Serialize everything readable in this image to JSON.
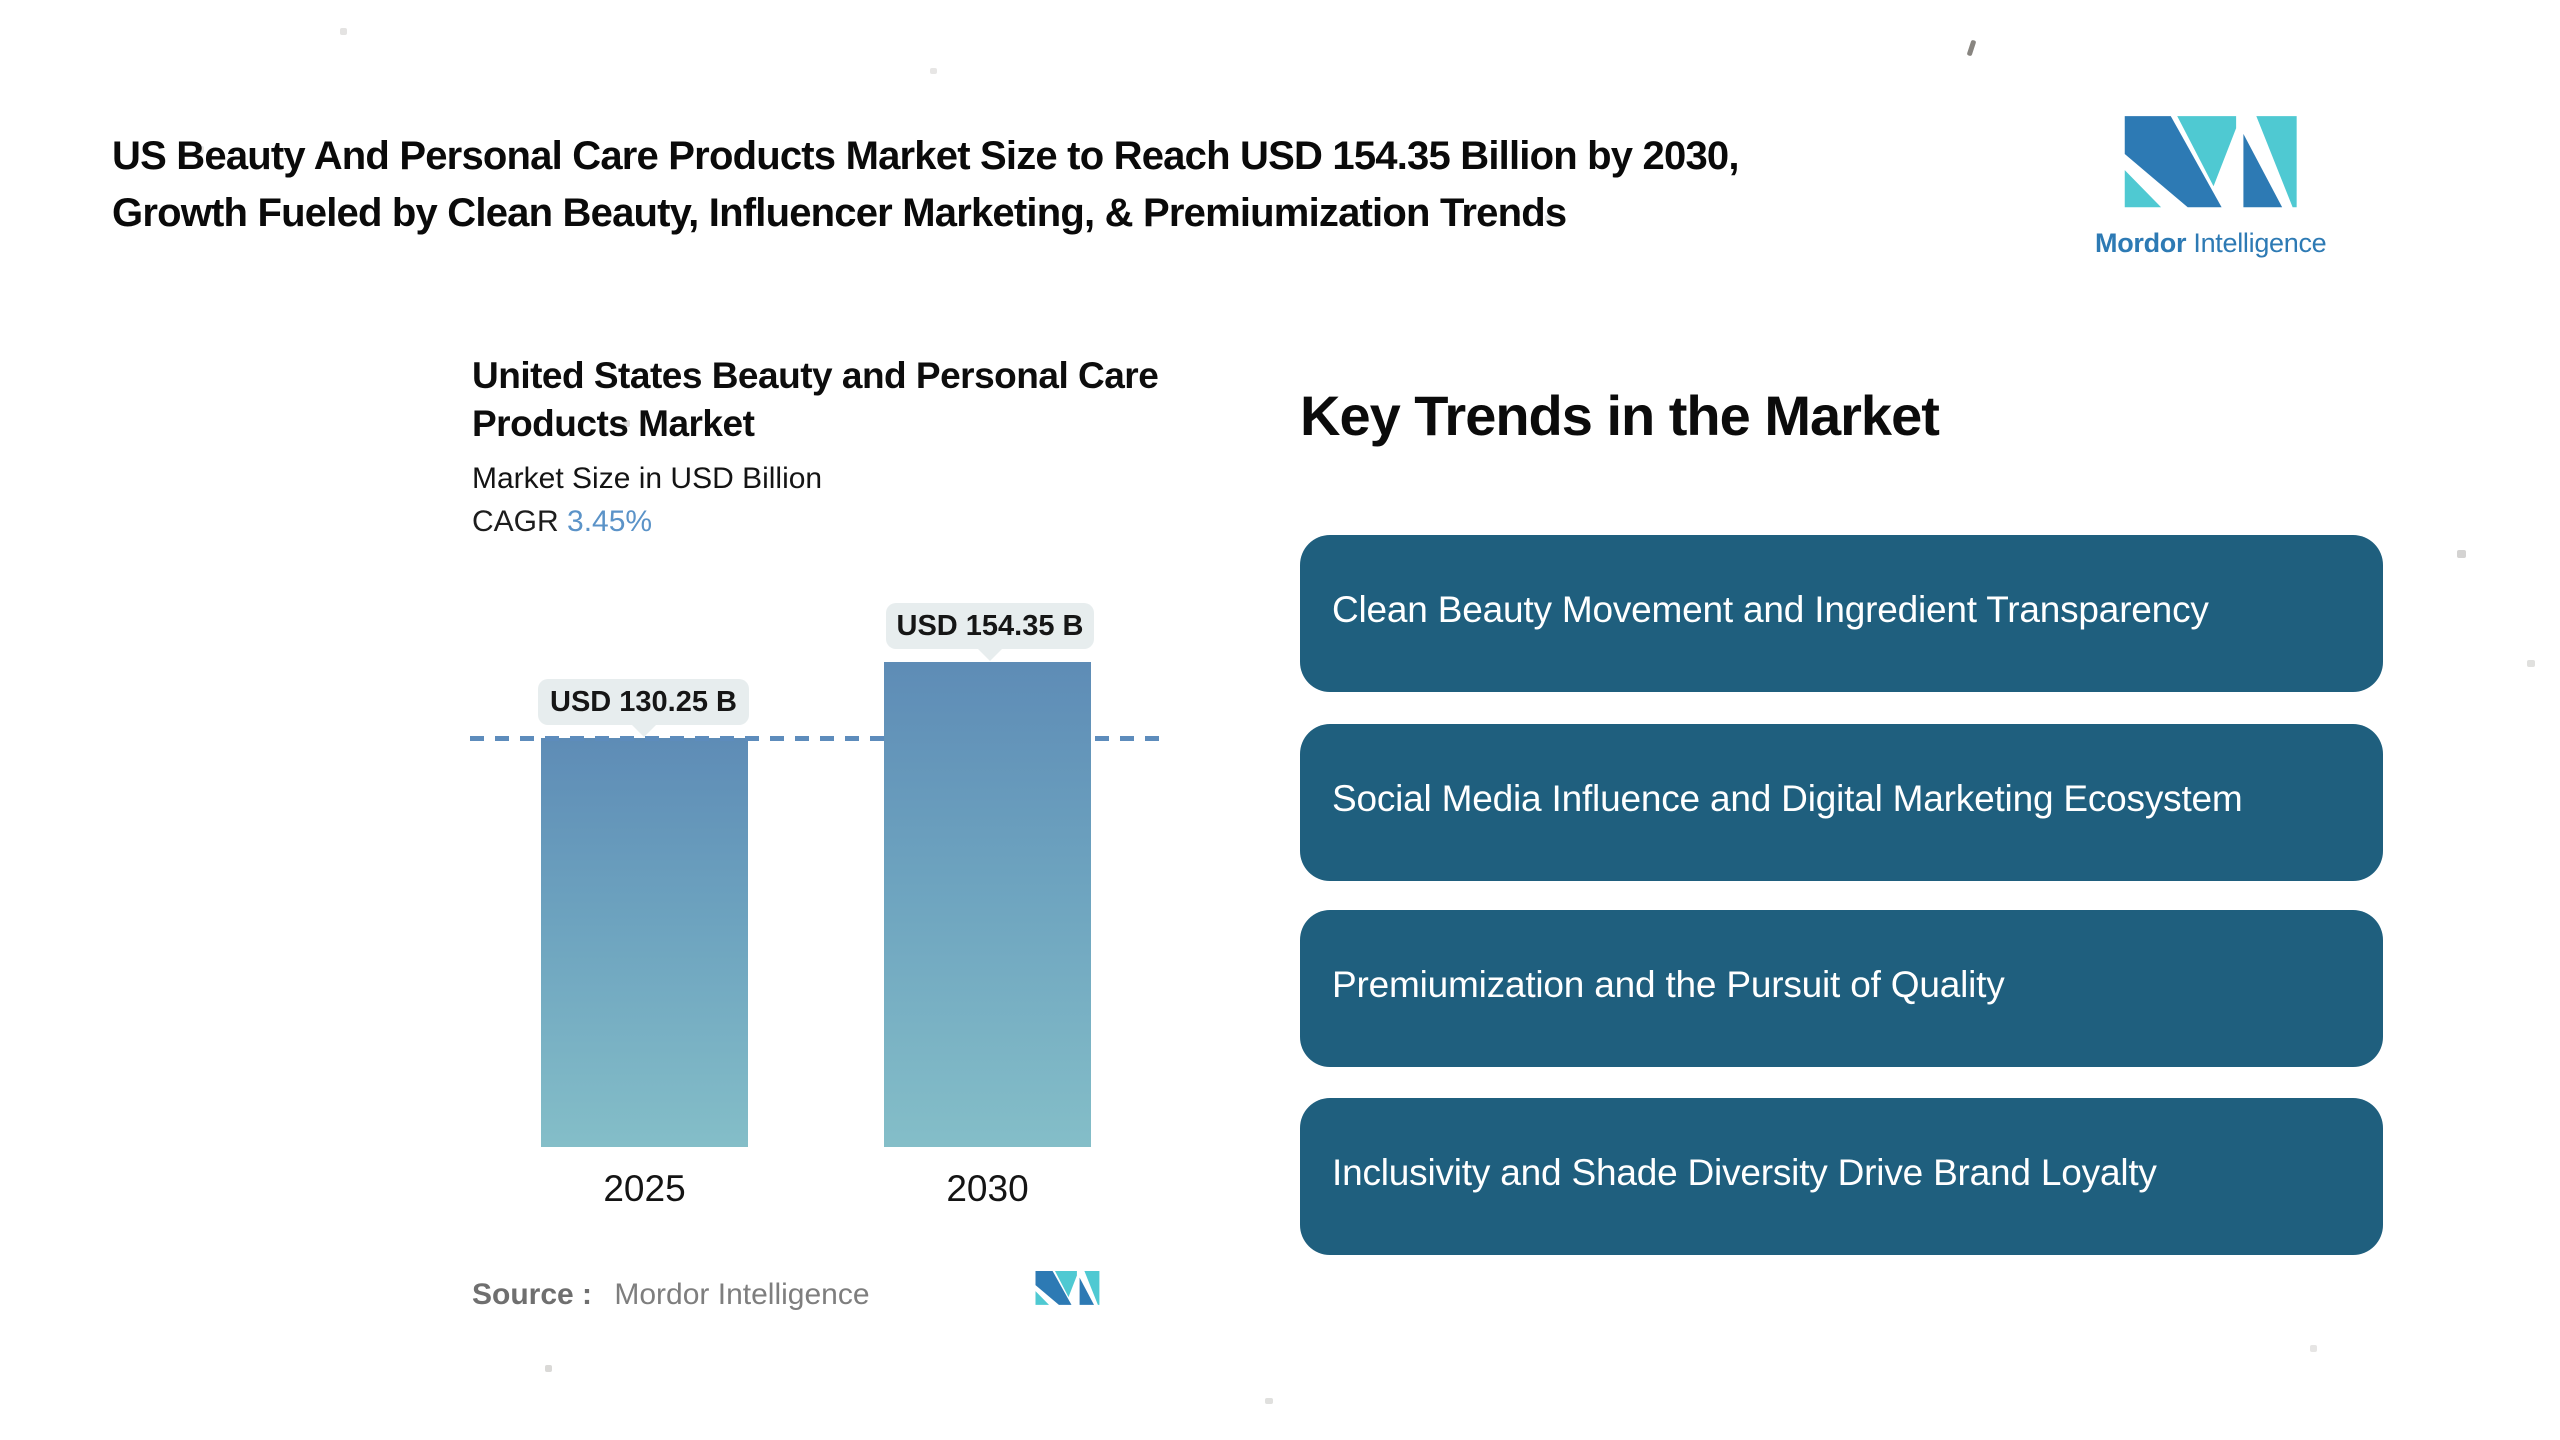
{
  "header": {
    "title": "US Beauty And Personal Care Products Market Size to Reach USD 154.35 Billion by 2030, Growth Fueled by Clean Beauty, Influencer Marketing, & Premiumization Trends"
  },
  "brand": {
    "name_bold": "Mordor",
    "name_light": "Intelligence",
    "blue": "#2d7ab4",
    "teal": "#4fc9d2"
  },
  "chart": {
    "title": "United States Beauty and Personal Care Products Market",
    "subtitle": "Market Size in USD Billion",
    "cagr_label": "CAGR",
    "cagr_value": "3.45%",
    "cagr_value_color": "#5b93c8",
    "callout_bg": "#e7edee",
    "source_label": "Source :",
    "source_value": "Mordor Intelligence"
  },
  "chart_data": {
    "type": "bar",
    "title": "United States Beauty and Personal Care Products Market",
    "subtitle": "Market Size in USD Billion",
    "cagr_percent": 3.45,
    "unit": "USD Billion",
    "categories": [
      "2025",
      "2030"
    ],
    "values": [
      130.25,
      154.35
    ],
    "value_labels": [
      "USD 130.25 B",
      "USD 154.35 B"
    ],
    "ylim": [
      0,
      160
    ],
    "grid": false,
    "legend": false,
    "reference_line": {
      "at_value": 130.25,
      "style": "dashed",
      "color": "#5d8cbc"
    },
    "bar_colors": {
      "top": "#5e8cb6",
      "bottom": "#84bec8"
    }
  },
  "trends": {
    "heading": "Key Trends in the Market",
    "pill_bg": "#1f5f7e",
    "text_color": "#ffffff",
    "items": [
      {
        "label": "Clean Beauty Movement and Ingredient Transparency"
      },
      {
        "label": "Social Media Influence and Digital Marketing Ecosystem"
      },
      {
        "label": "Premiumization and the Pursuit of Quality"
      },
      {
        "label": "Inclusivity and Shade Diversity Drive Brand Loyalty"
      }
    ]
  }
}
